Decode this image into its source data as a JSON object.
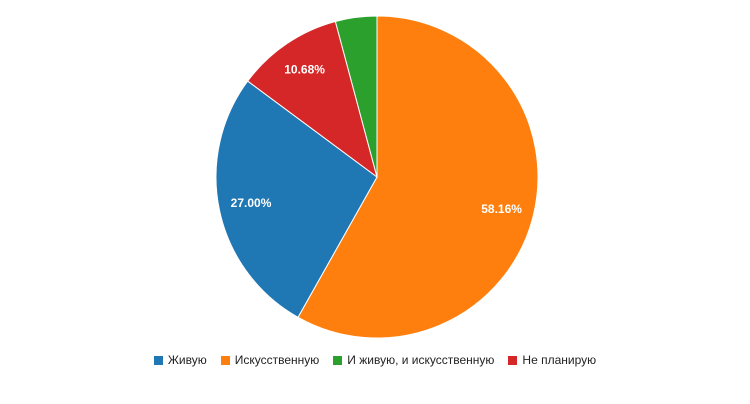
{
  "chart_data": {
    "type": "pie",
    "categories": [
      "Живую",
      "Искусственную",
      "И живую, и искусственную",
      "Не планирую"
    ],
    "values": [
      27.0,
      58.16,
      4.16,
      10.68
    ],
    "value_labels": [
      "27.00%",
      "58.16%",
      null,
      "10.68%"
    ],
    "colors": [
      "#1f77b4",
      "#ff7f0e",
      "#2ca02c",
      "#d62728"
    ],
    "legend": "bottom"
  }
}
